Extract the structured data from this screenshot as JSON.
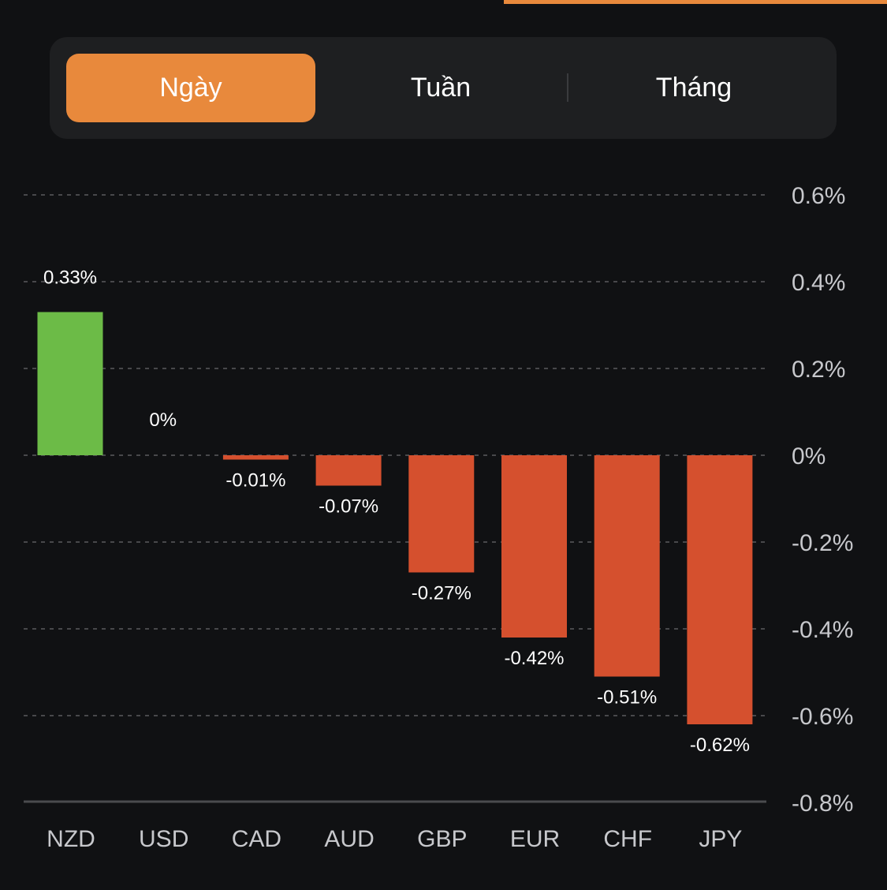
{
  "tabs": [
    {
      "label": "Ngày",
      "active": true
    },
    {
      "label": "Tuần",
      "active": false
    },
    {
      "label": "Tháng",
      "active": false
    }
  ],
  "colors": {
    "accent": "#e8893c",
    "positive": "#6cbb47",
    "negative": "#d5502e",
    "background": "#101113"
  },
  "chart_data": {
    "type": "bar",
    "title": "",
    "xlabel": "",
    "ylabel": "",
    "categories": [
      "NZD",
      "USD",
      "CAD",
      "AUD",
      "GBP",
      "EUR",
      "CHF",
      "JPY"
    ],
    "values": [
      0.33,
      0,
      -0.01,
      -0.07,
      -0.27,
      -0.42,
      -0.51,
      -0.62
    ],
    "value_labels": [
      "0.33%",
      "0%",
      "-0.01%",
      "-0.07%",
      "-0.27%",
      "-0.42%",
      "-0.51%",
      "-0.62%"
    ],
    "ylim": [
      -0.8,
      0.6
    ],
    "yticks": [
      0.6,
      0.4,
      0.2,
      0,
      -0.2,
      -0.4,
      -0.6,
      -0.8
    ],
    "ytick_labels": [
      "0.6%",
      "0.4%",
      "0.2%",
      "0%",
      "-0.2%",
      "-0.4%",
      "-0.6%",
      "-0.8%"
    ],
    "y_axis_position": "right",
    "grid": true,
    "legend": "none"
  }
}
